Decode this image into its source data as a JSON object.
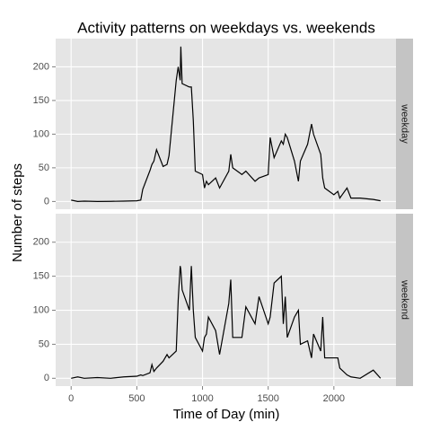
{
  "chart_data": {
    "type": "line",
    "title": "Activity patterns on weekdays vs. weekends",
    "xlabel": "Time of Day (min)",
    "ylabel": "Number of steps",
    "facet": true,
    "x": [
      0,
      50,
      100,
      200,
      300,
      400,
      500,
      530,
      545,
      600,
      615,
      630,
      650,
      700,
      730,
      745,
      800,
      815,
      830,
      835,
      845,
      900,
      915,
      930,
      945,
      1000,
      1015,
      1030,
      1045,
      1100,
      1130,
      1200,
      1215,
      1230,
      1300,
      1330,
      1400,
      1430,
      1500,
      1515,
      1545,
      1600,
      1615,
      1630,
      1645,
      1700,
      1730,
      1745,
      1800,
      1830,
      1845,
      1900,
      1915,
      1930,
      2000,
      2030,
      2045,
      2100,
      2130,
      2200,
      2300,
      2355
    ],
    "series": [
      {
        "name": "weekday",
        "color": "#000000",
        "values": [
          2,
          0,
          0.5,
          0,
          0.2,
          0.5,
          1,
          2,
          18,
          46,
          55,
          60,
          77,
          52,
          55,
          68,
          180,
          200,
          180,
          230,
          175,
          170,
          170,
          120,
          45,
          40,
          20,
          30,
          25,
          35,
          20,
          45,
          70,
          50,
          40,
          45,
          30,
          35,
          40,
          95,
          65,
          90,
          85,
          100,
          95,
          60,
          30,
          60,
          85,
          115,
          100,
          70,
          35,
          20,
          10,
          15,
          5,
          20,
          5,
          5,
          3,
          1
        ]
      },
      {
        "name": "weekend",
        "color": "#000000",
        "values": [
          0,
          2,
          0,
          1,
          0,
          2,
          3,
          5,
          4,
          8,
          20,
          10,
          15,
          25,
          35,
          30,
          40,
          115,
          165,
          160,
          130,
          100,
          165,
          100,
          60,
          40,
          60,
          65,
          90,
          70,
          35,
          110,
          145,
          60,
          60,
          105,
          80,
          120,
          80,
          90,
          140,
          150,
          80,
          120,
          60,
          90,
          100,
          50,
          55,
          30,
          65,
          40,
          90,
          30,
          30,
          30,
          15,
          5,
          2,
          0,
          12,
          0
        ]
      }
    ],
    "xlim": [
      -117.75,
      2472.75
    ],
    "xticks": [
      0,
      500,
      1000,
      1500,
      2000
    ],
    "ylim": [
      -11.5,
      241.9
    ],
    "yticks": [
      0,
      50,
      100,
      150,
      200
    ],
    "grid": true
  }
}
